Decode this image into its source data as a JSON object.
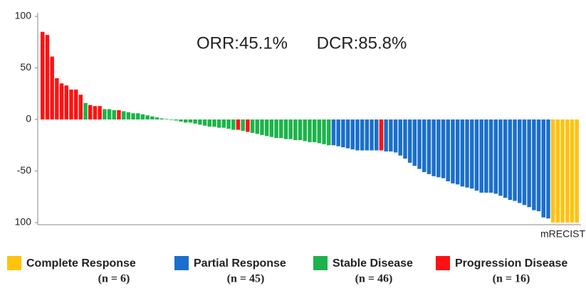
{
  "chart_data": {
    "type": "bar",
    "annotations": [
      "ORR:45.1%",
      "DCR:85.8%"
    ],
    "xlabel": "mRECIST",
    "ylim": [
      -100,
      100
    ],
    "yticks": [
      {
        "value": -100,
        "label": "100"
      },
      -50,
      0,
      50,
      100
    ],
    "values": [
      85,
      82,
      61,
      40,
      35,
      33,
      29,
      29,
      24,
      16,
      14,
      13,
      13,
      10,
      10,
      9,
      9,
      8,
      7,
      6,
      6,
      5,
      4,
      3,
      2,
      1,
      0.5,
      -0.5,
      -1,
      -2,
      -3,
      -3,
      -4,
      -5,
      -6,
      -7,
      -7,
      -8,
      -8,
      -9,
      -10,
      -10,
      -11,
      -12,
      -13,
      -14,
      -15,
      -16,
      -17,
      -18,
      -18,
      -19,
      -19,
      -20,
      -20,
      -21,
      -22,
      -22,
      -23,
      -24,
      -25,
      -25,
      -26,
      -27,
      -28,
      -29,
      -30,
      -30,
      -30,
      -30,
      -30,
      -30,
      -31,
      -31,
      -32,
      -35,
      -38,
      -42,
      -45,
      -48,
      -51,
      -53,
      -55,
      -56,
      -57,
      -60,
      -62,
      -63,
      -65,
      -66,
      -67,
      -69,
      -71,
      -71,
      -71,
      -72,
      -74,
      -76,
      -78,
      -79,
      -81,
      -83,
      -85,
      -88,
      -89,
      -95,
      -96,
      -100,
      -100,
      -100,
      -100,
      -100,
      -100
    ],
    "colors": [
      "#ff1111",
      "#ff1111",
      "#ff1111",
      "#ff1111",
      "#ff1111",
      "#ff1111",
      "#ff1111",
      "#ff1111",
      "#ff1111",
      "#1db34a",
      "#ff1111",
      "#ff1111",
      "#ff1111",
      "#1db34a",
      "#1db34a",
      "#1db34a",
      "#ff1111",
      "#1db34a",
      "#1db34a",
      "#1db34a",
      "#1db34a",
      "#1db34a",
      "#1db34a",
      "#1db34a",
      "#1db34a",
      "#1db34a",
      "#1db34a",
      "#1db34a",
      "#1db34a",
      "#1db34a",
      "#1db34a",
      "#1db34a",
      "#1db34a",
      "#1db34a",
      "#1db34a",
      "#1db34a",
      "#1db34a",
      "#1db34a",
      "#1db34a",
      "#1db34a",
      "#1db34a",
      "#ff1111",
      "#1db34a",
      "#ff1111",
      "#1db34a",
      "#1db34a",
      "#1db34a",
      "#1db34a",
      "#1db34a",
      "#1db34a",
      "#1db34a",
      "#1db34a",
      "#1db34a",
      "#1db34a",
      "#1db34a",
      "#1db34a",
      "#1db34a",
      "#1db34a",
      "#1db34a",
      "#1db34a",
      "#1db34a",
      "#1a6fcc",
      "#1a6fcc",
      "#1a6fcc",
      "#1a6fcc",
      "#1a6fcc",
      "#1a6fcc",
      "#1a6fcc",
      "#1a6fcc",
      "#1a6fcc",
      "#1a6fcc",
      "#ff1111",
      "#1a6fcc",
      "#1a6fcc",
      "#1a6fcc",
      "#1a6fcc",
      "#1a6fcc",
      "#1a6fcc",
      "#1a6fcc",
      "#1a6fcc",
      "#1a6fcc",
      "#1a6fcc",
      "#1a6fcc",
      "#1a6fcc",
      "#1a6fcc",
      "#1a6fcc",
      "#1a6fcc",
      "#1a6fcc",
      "#1a6fcc",
      "#1a6fcc",
      "#1a6fcc",
      "#1a6fcc",
      "#1a6fcc",
      "#1a6fcc",
      "#1a6fcc",
      "#1a6fcc",
      "#1a6fcc",
      "#1a6fcc",
      "#1a6fcc",
      "#1a6fcc",
      "#1a6fcc",
      "#1a6fcc",
      "#1a6fcc",
      "#1a6fcc",
      "#1a6fcc",
      "#1a6fcc",
      "#1a6fcc",
      "#ffc20e",
      "#ffc20e",
      "#ffc20e",
      "#ffc20e",
      "#ffc20e",
      "#ffc20e"
    ],
    "legend": [
      {
        "name": "Complete Response",
        "color": "#ffc20e",
        "n_label": "(n = 6)"
      },
      {
        "name": "Partial Response",
        "color": "#1a6fcc",
        "n_label": "(n = 45)"
      },
      {
        "name": "Stable Disease",
        "color": "#1db34a",
        "n_label": "(n = 46)"
      },
      {
        "name": "Progression Disease",
        "color": "#ff1111",
        "n_label": "(n = 16)"
      }
    ]
  }
}
